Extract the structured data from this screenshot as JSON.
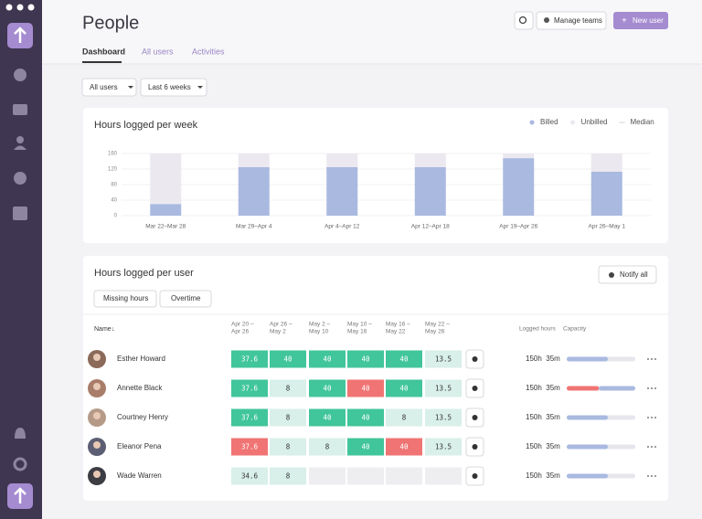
{
  "header": {
    "title": "People",
    "buttons": [
      "Manage teams",
      "New user"
    ]
  },
  "tabs": [
    "Dashboard",
    "All users",
    "Activities"
  ],
  "filters": [
    "All users",
    "Last 6 weeks"
  ],
  "chart_data": {
    "type": "bar",
    "stacked": true,
    "title": "Hours logged per week",
    "categories": [
      "Mar 22–Mar 28",
      "Mar 29–Apr 4",
      "Apr 4–Apr 12",
      "Apr 12–Apr 18",
      "Apr 19–Apr 26",
      "Apr 26–May 1"
    ],
    "series": [
      {
        "name": "Billed",
        "color": "#a9b9e0",
        "values": [
          30,
          125,
          125,
          125,
          148,
          113
        ]
      },
      {
        "name": "Unbilled",
        "color": "#ebe8ef",
        "values": [
          130,
          35,
          35,
          35,
          12,
          47
        ]
      },
      {
        "name": "Median",
        "color": "#dcdce2"
      }
    ],
    "ylim": [
      0,
      160
    ],
    "yticks": [
      0,
      40,
      80,
      120,
      160
    ],
    "grid": true,
    "legend": "top-right"
  },
  "user_table": {
    "title": "Hours logged per user",
    "notify_button": "Notify all",
    "toggles": [
      "Missing hours",
      "Overtime"
    ],
    "columns": {
      "name": "Name",
      "weeks": [
        [
          "Apr 20 –",
          "Apr 26"
        ],
        [
          "Apr 26 –",
          "May 2"
        ],
        [
          "May 2 –",
          "May 10"
        ],
        [
          "May 10 –",
          "May 16"
        ],
        [
          "May 16 –",
          "May 22"
        ],
        [
          "May 22 –",
          "May 26"
        ]
      ],
      "logged": "Logged hours",
      "capacity": "Capacity"
    },
    "rows": [
      {
        "name": "Esther Howard",
        "hours": [
          37.6,
          40,
          40,
          40,
          40,
          13.5
        ],
        "colors": [
          "#41c59b",
          "#41c59b",
          "#41c59b",
          "#41c59b",
          "#41c59b",
          "#d9efe9"
        ],
        "logged": "150h  35m",
        "capacity": {
          "values": [
            60
          ],
          "colors": [
            "#a9b9e0"
          ]
        }
      },
      {
        "name": "Annette Black",
        "hours": [
          37.6,
          8,
          40,
          40,
          40,
          13.5
        ],
        "colors": [
          "#41c59b",
          "#d9efe9",
          "#41c59b",
          "#f07474",
          "#41c59b",
          "#d9efe9"
        ],
        "logged": "150h  35m",
        "capacity": {
          "values": [
            47,
            53
          ],
          "colors": [
            "#f07474",
            "#a9b9e0"
          ]
        }
      },
      {
        "name": "Courtney Henry",
        "hours": [
          37.6,
          8,
          40,
          40,
          8,
          13.5
        ],
        "colors": [
          "#41c59b",
          "#d9efe9",
          "#41c59b",
          "#41c59b",
          "#d9efe9",
          "#d9efe9"
        ],
        "logged": "150h  35m",
        "capacity": {
          "values": [
            60
          ],
          "colors": [
            "#a9b9e0"
          ]
        }
      },
      {
        "name": "Eleanor Pena",
        "hours": [
          37.6,
          8,
          8,
          40,
          40,
          13.5
        ],
        "colors": [
          "#f07474",
          "#d9efe9",
          "#d9efe9",
          "#41c59b",
          "#f07474",
          "#d9efe9"
        ],
        "logged": "150h  35m",
        "capacity": {
          "values": [
            60
          ],
          "colors": [
            "#a9b9e0"
          ]
        }
      },
      {
        "name": "Wade Warren",
        "hours": [
          34.6,
          8,
          null,
          null,
          null,
          null
        ],
        "colors": [
          "#d9efe9",
          "#d9efe9",
          "#eeeef1",
          "#eeeef1",
          "#eeeef1",
          "#eeeef1"
        ],
        "logged": "150h  35m",
        "capacity": {
          "values": [
            60
          ],
          "colors": [
            "#a9b9e0"
          ]
        }
      }
    ]
  }
}
